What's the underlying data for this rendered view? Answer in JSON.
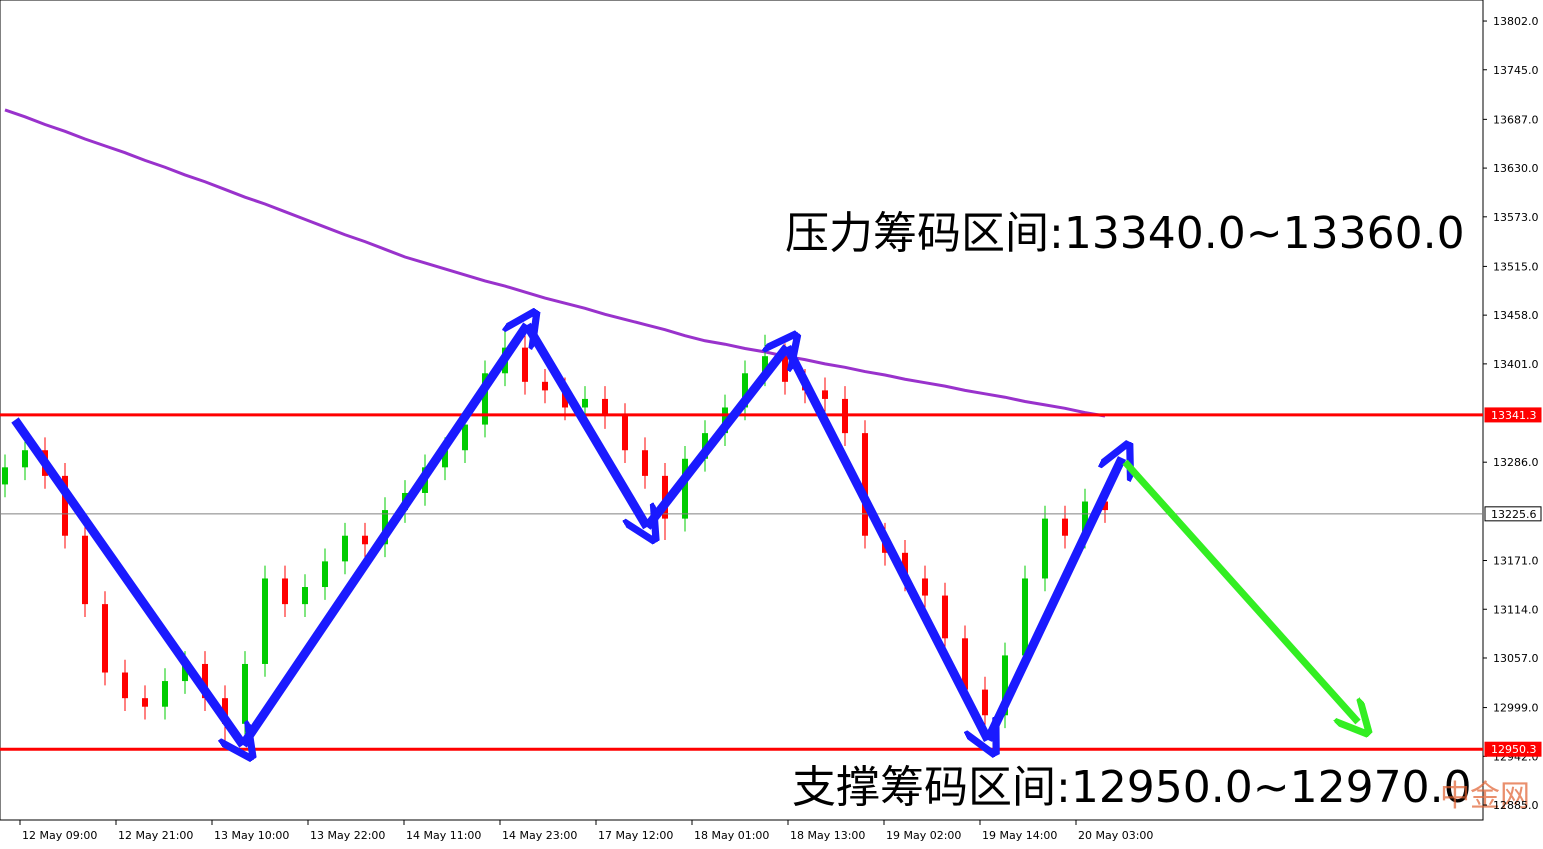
{
  "chart_data": {
    "type": "candlestick",
    "open": [
      13260,
      13280,
      13300,
      13270,
      13200,
      13120,
      13040,
      13010,
      13000,
      13030,
      13050,
      13010,
      12980,
      13050,
      13150,
      13120,
      13140,
      13170,
      13200,
      13190,
      13230,
      13250,
      13280,
      13300,
      13330,
      13390,
      13420,
      13380,
      13370,
      13350,
      13360,
      13340,
      13300,
      13270,
      13220,
      13290,
      13320,
      13350,
      13390,
      13410,
      13380,
      13370,
      13360,
      13320,
      13200,
      13180,
      13150,
      13130,
      13080,
      13020,
      12990,
      13060,
      13150,
      13220,
      13200,
      13240
    ],
    "high": [
      13295,
      13315,
      13315,
      13285,
      13215,
      13135,
      13055,
      13025,
      13045,
      13065,
      13065,
      13025,
      13065,
      13165,
      13165,
      13155,
      13185,
      13215,
      13215,
      13245,
      13265,
      13295,
      13315,
      13345,
      13405,
      13440,
      13435,
      13395,
      13385,
      13375,
      13375,
      13355,
      13315,
      13285,
      13305,
      13335,
      13365,
      13405,
      13435,
      13425,
      13395,
      13385,
      13375,
      13335,
      13215,
      13195,
      13165,
      13145,
      13095,
      13035,
      13075,
      13165,
      13235,
      13235,
      13255,
      13255
    ],
    "low": [
      13245,
      13265,
      13255,
      13185,
      13105,
      13025,
      12995,
      12985,
      12985,
      13015,
      12995,
      12955,
      12965,
      13035,
      13105,
      13105,
      13125,
      13155,
      13175,
      13175,
      13215,
      13235,
      13265,
      13285,
      13315,
      13375,
      13365,
      13355,
      13335,
      13335,
      13325,
      13285,
      13255,
      13195,
      13205,
      13275,
      13305,
      13335,
      13375,
      13365,
      13355,
      13345,
      13305,
      13185,
      13165,
      13135,
      13115,
      13065,
      13005,
      12960,
      12975,
      13045,
      13135,
      13185,
      13185,
      13215
    ],
    "close": [
      13280,
      13300,
      13270,
      13200,
      13120,
      13040,
      13010,
      13000,
      13030,
      13050,
      13010,
      12980,
      13050,
      13150,
      13120,
      13140,
      13170,
      13200,
      13190,
      13230,
      13250,
      13280,
      13300,
      13330,
      13390,
      13420,
      13380,
      13370,
      13350,
      13360,
      13340,
      13300,
      13270,
      13220,
      13290,
      13320,
      13350,
      13390,
      13410,
      13380,
      13370,
      13360,
      13320,
      13200,
      13180,
      13150,
      13130,
      13080,
      13020,
      12990,
      13060,
      13150,
      13220,
      13200,
      13240,
      13230
    ],
    "up_color": "#00cc00",
    "down_color": "#ff0000",
    "moving_average": {
      "color": "#9932cc",
      "values": [
        13698,
        13690,
        13681,
        13673,
        13664,
        13656,
        13648,
        13639,
        13631,
        13622,
        13614,
        13605,
        13596,
        13588,
        13579,
        13570,
        13561,
        13552,
        13544,
        13535,
        13526,
        13519,
        13512,
        13505,
        13498,
        13492,
        13485,
        13478,
        13472,
        13466,
        13459,
        13453,
        13447,
        13441,
        13434,
        13428,
        13424,
        13419,
        13415,
        13410,
        13406,
        13401,
        13397,
        13392,
        13388,
        13383,
        13379,
        13375,
        13370,
        13366,
        13362,
        13357,
        13353,
        13349,
        13344,
        13340
      ]
    },
    "ylim": [
      12867.5,
      13826.6
    ],
    "yticks": [
      {
        "value": 13802,
        "label": "13802.0"
      },
      {
        "value": 13745,
        "label": "13745.0"
      },
      {
        "value": 13687,
        "label": "13687.0"
      },
      {
        "value": 13630,
        "label": "13630.0"
      },
      {
        "value": 13573,
        "label": "13573.0"
      },
      {
        "value": 13515,
        "label": "13515.0"
      },
      {
        "value": 13458,
        "label": "13458.0"
      },
      {
        "value": 13401,
        "label": "13401.0"
      },
      {
        "value": 13286,
        "label": "13286.0"
      },
      {
        "value": 13171,
        "label": "13171.0"
      },
      {
        "value": 13114,
        "label": "13114.0"
      },
      {
        "value": 13057,
        "label": "13057.0"
      },
      {
        "value": 12999,
        "label": "12999.0"
      },
      {
        "value": 12942,
        "label": "12942.0"
      },
      {
        "value": 12885,
        "label": "12885.0"
      }
    ],
    "xticks": [
      "12 May 09:00",
      "12 May 21:00",
      "13 May 10:00",
      "13 May 22:00",
      "14 May 11:00",
      "14 May 23:00",
      "17 May 12:00",
      "18 May 01:00",
      "18 May 13:00",
      "19 May 02:00",
      "19 May 14:00",
      "20 May 03:00"
    ],
    "levels": [
      {
        "value": 13341.3,
        "color": "#ff0000"
      },
      {
        "value": 12950.3,
        "color": "#ff0000"
      },
      {
        "value": 13225.6,
        "color": "#808080"
      }
    ],
    "annotations": [
      "压力筹码区间:13340.0~13360.0",
      "支撑筹码区间:12950.0~12970.0"
    ],
    "watermark": "中金网"
  }
}
